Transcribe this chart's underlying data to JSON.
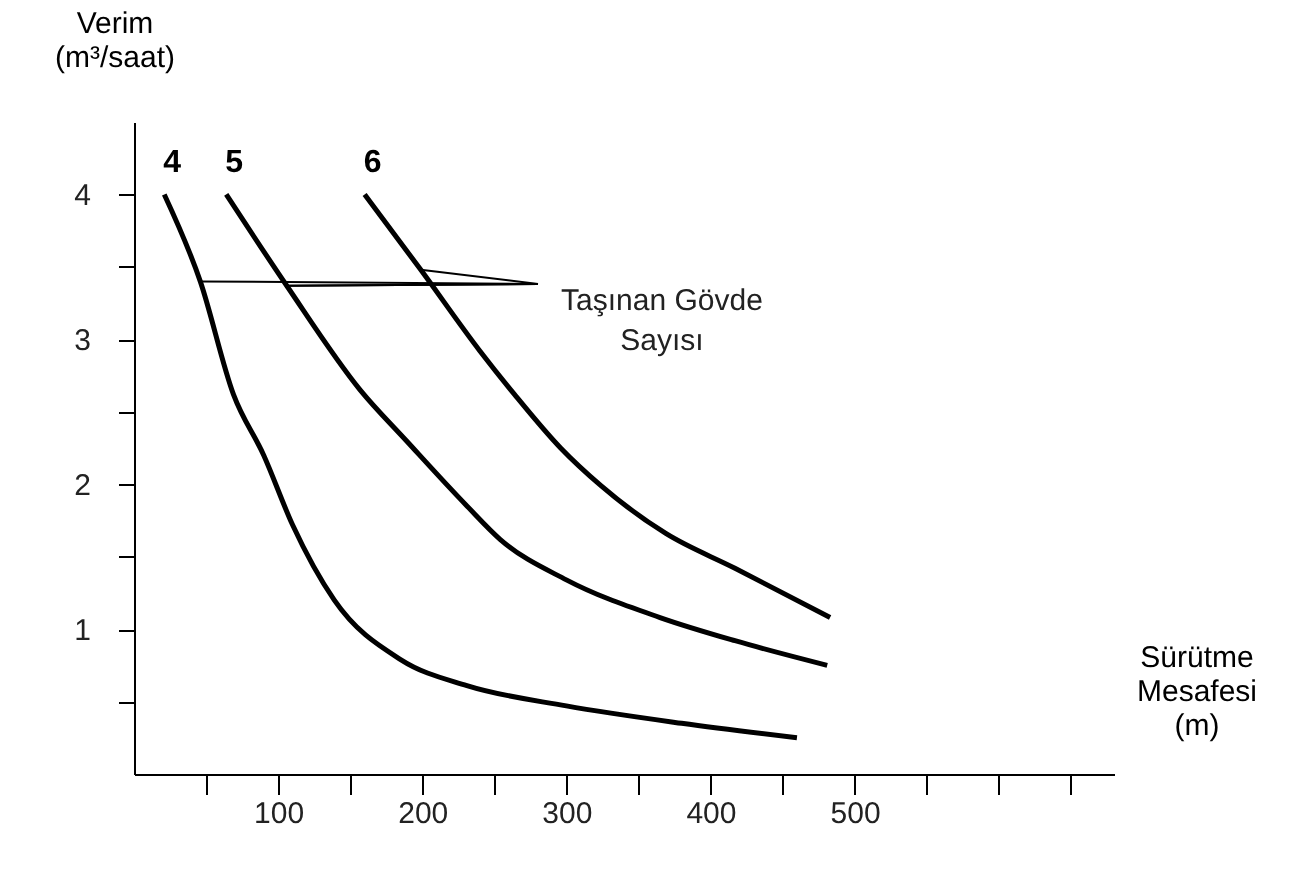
{
  "chart_data": {
    "type": "line",
    "xlabel": "Sürütme\nMesafesi\n(m)",
    "ylabel": "Verim\n(m³/saat)",
    "xlim": [
      0,
      680
    ],
    "ylim": [
      0,
      4.5
    ],
    "xticks": [
      {
        "value": 50,
        "label": null
      },
      100,
      {
        "value": 150,
        "label": null
      },
      200,
      {
        "value": 250,
        "label": null
      },
      300,
      {
        "value": 350,
        "label": null
      },
      400,
      {
        "value": 450,
        "label": null
      },
      500,
      {
        "value": 550,
        "label": null
      },
      {
        "value": 600,
        "label": null
      },
      {
        "value": 650,
        "label": null
      }
    ],
    "yticks": [
      {
        "value": 0.5,
        "label": null
      },
      1,
      {
        "value": 1.5,
        "label": null
      },
      2,
      {
        "value": 2.5,
        "label": null
      },
      3,
      {
        "value": 3.5,
        "label": null
      },
      4
    ],
    "series": [
      {
        "name": "4",
        "color": "#000000",
        "x": [
          21,
          46,
          69,
          90,
          110,
          139,
          185,
          231,
          300,
          380,
          460
        ],
        "values": [
          4,
          3.4,
          2.62,
          2.2,
          1.72,
          1.2,
          0.79,
          0.61,
          0.47,
          0.35,
          0.25
        ]
      },
      {
        "name": "5",
        "color": "#000000",
        "x": [
          64,
          106,
          157,
          189,
          231,
          254,
          300,
          365,
          417,
          481
        ],
        "values": [
          4,
          3.37,
          2.65,
          2.3,
          1.85,
          1.62,
          1.34,
          1.08,
          0.92,
          0.75
        ]
      },
      {
        "name": "6",
        "color": "#000000",
        "x": [
          160,
          199,
          240,
          264,
          296,
          324,
          369,
          417,
          483
        ],
        "values": [
          4,
          3.48,
          2.92,
          2.62,
          2.25,
          1.99,
          1.66,
          1.42,
          1.08
        ]
      }
    ],
    "annotations": [
      {
        "text": "Taşınan Gövde\nSayısı",
        "x": 106,
        "y": 3.37
      }
    ],
    "grid": false,
    "marker": "none",
    "line_style": "solid"
  }
}
